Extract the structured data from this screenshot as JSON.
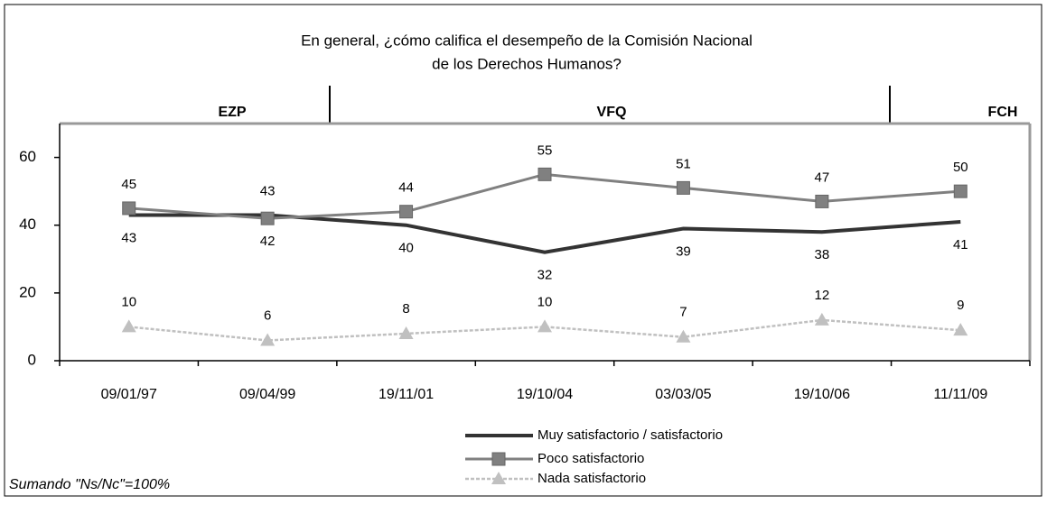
{
  "chart_data": {
    "type": "line",
    "title": [
      "En general, ¿cómo califica el desempeño de la Comisión Nacional",
      "de los Derechos Humanos?"
    ],
    "periods": [
      "EZP",
      "VFQ",
      "FCH"
    ],
    "categories": [
      "09/01/97",
      "09/04/99",
      "19/11/01",
      "19/10/04",
      "03/03/05",
      "19/10/06",
      "11/11/09"
    ],
    "series": [
      {
        "name": "Muy satisfactorio / satisfactorio",
        "color": "#333333",
        "values": [
          43,
          43,
          40,
          32,
          39,
          38,
          41
        ]
      },
      {
        "name": "Poco satisfactorio",
        "color": "#808080",
        "values": [
          45,
          42,
          44,
          55,
          51,
          47,
          50
        ]
      },
      {
        "name": "Nada satisfactorio",
        "color": "#c0c0c0",
        "values": [
          10,
          6,
          8,
          10,
          7,
          12,
          9
        ]
      }
    ],
    "ylim": [
      0,
      70
    ],
    "yticks": [
      0,
      20,
      40,
      60
    ],
    "note": "Sumando \"Ns/Nc\"=100%"
  }
}
